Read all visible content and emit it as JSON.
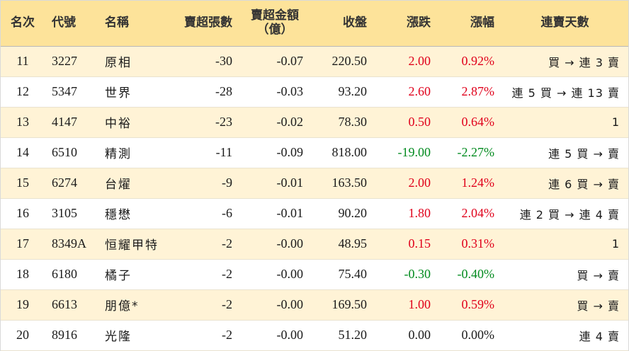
{
  "headers": {
    "rank": "名次",
    "code": "代號",
    "name": "名稱",
    "net_lots": "賣超張數",
    "net_amount_line1": "賣超金額",
    "net_amount_line2": "（億）",
    "close": "收盤",
    "change": "漲跌",
    "pct": "漲幅",
    "streak": "連賣天數"
  },
  "colors": {
    "header_bg": "#fde39a",
    "odd_row_bg": "#fff3d6",
    "up": "#e0001b",
    "down": "#008a1e"
  },
  "rows": [
    {
      "rank": "11",
      "code": "3227",
      "name": "原相",
      "net_lots": "-30",
      "net_amount": "-0.07",
      "close": "220.50",
      "change": "2.00",
      "pct": "0.92%",
      "dir": "up",
      "streak": "買 → 連 3 賣"
    },
    {
      "rank": "12",
      "code": "5347",
      "name": "世界",
      "net_lots": "-28",
      "net_amount": "-0.03",
      "close": "93.20",
      "change": "2.60",
      "pct": "2.87%",
      "dir": "up",
      "streak": "連 5 買 → 連 13 賣"
    },
    {
      "rank": "13",
      "code": "4147",
      "name": "中裕",
      "net_lots": "-23",
      "net_amount": "-0.02",
      "close": "78.30",
      "change": "0.50",
      "pct": "0.64%",
      "dir": "up",
      "streak": "1"
    },
    {
      "rank": "14",
      "code": "6510",
      "name": "精測",
      "net_lots": "-11",
      "net_amount": "-0.09",
      "close": "818.00",
      "change": "-19.00",
      "pct": "-2.27%",
      "dir": "down",
      "streak": "連 5 買 → 賣"
    },
    {
      "rank": "15",
      "code": "6274",
      "name": "台燿",
      "net_lots": "-9",
      "net_amount": "-0.01",
      "close": "163.50",
      "change": "2.00",
      "pct": "1.24%",
      "dir": "up",
      "streak": "連 6 買 → 賣"
    },
    {
      "rank": "16",
      "code": "3105",
      "name": "穩懋",
      "net_lots": "-6",
      "net_amount": "-0.01",
      "close": "90.20",
      "change": "1.80",
      "pct": "2.04%",
      "dir": "up",
      "streak": "連 2 買 → 連 4 賣"
    },
    {
      "rank": "17",
      "code": "8349A",
      "name": "恒耀甲特",
      "net_lots": "-2",
      "net_amount": "-0.00",
      "close": "48.95",
      "change": "0.15",
      "pct": "0.31%",
      "dir": "up",
      "streak": "1"
    },
    {
      "rank": "18",
      "code": "6180",
      "name": "橘子",
      "net_lots": "-2",
      "net_amount": "-0.00",
      "close": "75.40",
      "change": "-0.30",
      "pct": "-0.40%",
      "dir": "down",
      "streak": "買 → 賣"
    },
    {
      "rank": "19",
      "code": "6613",
      "name": "朋億*",
      "net_lots": "-2",
      "net_amount": "-0.00",
      "close": "169.50",
      "change": "1.00",
      "pct": "0.59%",
      "dir": "up",
      "streak": "買 → 賣"
    },
    {
      "rank": "20",
      "code": "8916",
      "name": "光隆",
      "net_lots": "-2",
      "net_amount": "-0.00",
      "close": "51.20",
      "change": "0.00",
      "pct": "0.00%",
      "dir": "flat",
      "streak": "連 4 賣"
    }
  ]
}
